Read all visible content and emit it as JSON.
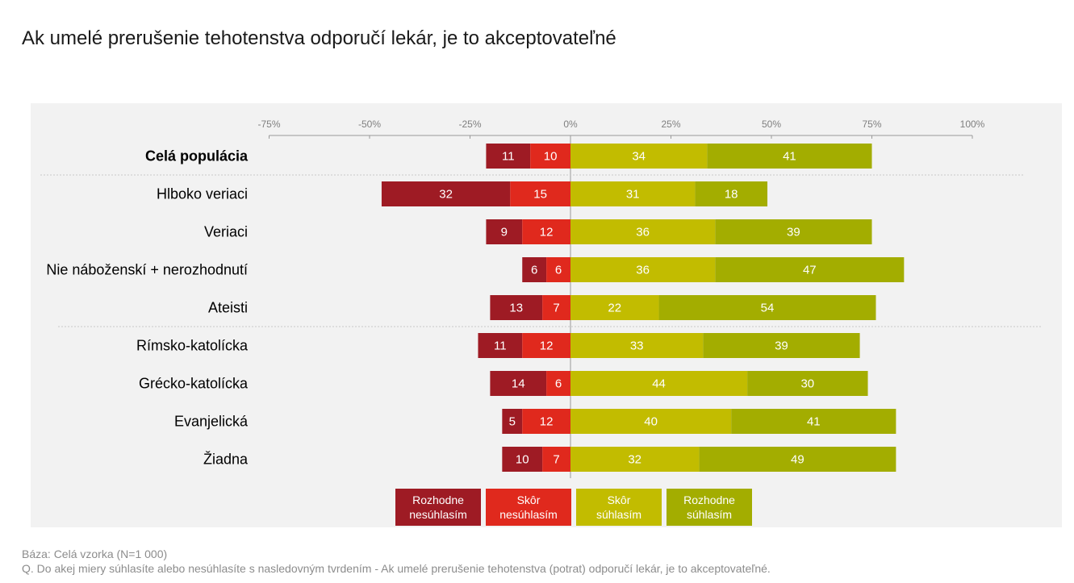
{
  "title": "Ak umelé prerušenie tehotenstva odporučí lekár, je to akceptovateľné",
  "footer": {
    "base": "Báza: Celá vzorka (N=1 000)",
    "question": "Q. Do akej miery súhlasíte alebo nesúhlasíte s nasledovným tvrdením -  Ak umelé prerušenie tehotenstva (potrat) odporučí lekár, je to akceptovateľné."
  },
  "colors": {
    "strongly_disagree": "#9e1b24",
    "rather_disagree": "#e0291d",
    "rather_agree": "#c2bc00",
    "strongly_agree": "#a3ad00",
    "panel": "#f2f2f2"
  },
  "legend": [
    {
      "label": "Rozhodne\nnesúhlasím",
      "color": "#9e1b24"
    },
    {
      "label": "Skôr\nnesúhlasím",
      "color": "#e0291d"
    },
    {
      "label": "Skôr\nsúhlasím",
      "color": "#c2bc00"
    },
    {
      "label": "Rozhodne\nsúhlasím",
      "color": "#a3ad00"
    }
  ],
  "chart_data": {
    "type": "bar",
    "orientation": "horizontal-diverging",
    "title": "Ak umelé prerušenie tehotenstva odporučí lekár, je to akceptovateľné",
    "xlim": [
      -75,
      100
    ],
    "ticks": [
      "-75%",
      "-50%",
      "-25%",
      "0%",
      "25%",
      "50%",
      "75%",
      "100%"
    ],
    "tick_values": [
      -75,
      -50,
      -25,
      0,
      25,
      50,
      75,
      100
    ],
    "categories": [
      "Celá populácia",
      "Hlboko veriaci",
      "Veriaci",
      "Nie náboženskí + nerozhodnutí",
      "Ateisti",
      "Rímsko-katolícka",
      "Grécko-katolícka",
      "Evanjelická",
      "Žiadna"
    ],
    "bold_categories": [
      "Celá populácia"
    ],
    "separators_after": [
      "Celá populácia",
      "Ateisti"
    ],
    "series": [
      {
        "name": "Rozhodne nesúhlasím",
        "side": "negative",
        "values": [
          11,
          32,
          9,
          6,
          13,
          11,
          14,
          5,
          10
        ]
      },
      {
        "name": "Skôr nesúhlasím",
        "side": "negative",
        "values": [
          10,
          15,
          12,
          6,
          7,
          12,
          6,
          12,
          7
        ]
      },
      {
        "name": "Skôr súhlasím",
        "side": "positive",
        "values": [
          34,
          31,
          36,
          36,
          22,
          33,
          44,
          40,
          32
        ]
      },
      {
        "name": "Rozhodne súhlasím",
        "side": "positive",
        "values": [
          41,
          18,
          39,
          47,
          54,
          39,
          30,
          41,
          49
        ]
      }
    ]
  }
}
